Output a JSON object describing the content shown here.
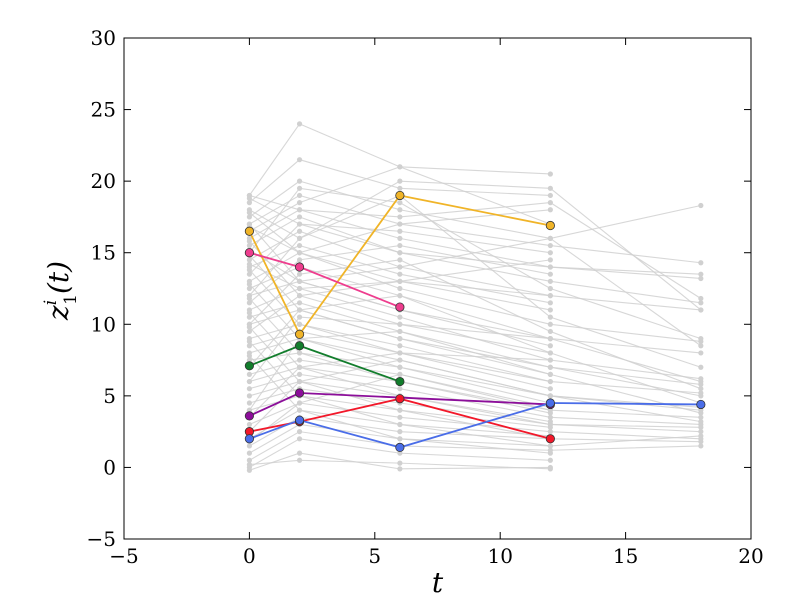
{
  "chart_data": {
    "type": "line",
    "title": "",
    "xlabel": "t",
    "ylabel_main": "z",
    "ylabel_sup": "i",
    "ylabel_sub": "1",
    "ylabel_arg": "(t)",
    "xlim": [
      -5,
      20
    ],
    "ylim": [
      -5,
      30
    ],
    "xticks": [
      -5,
      0,
      5,
      10,
      15,
      20
    ],
    "yticks": [
      -5,
      0,
      5,
      10,
      15,
      20,
      25,
      30
    ],
    "xtick_labels": [
      "−5",
      "0",
      "5",
      "10",
      "15",
      "20"
    ],
    "ytick_labels": [
      "−5",
      "0",
      "5",
      "10",
      "15",
      "20",
      "25",
      "30"
    ],
    "grid": false,
    "background_series_color": "#d0d0d0",
    "background_series": [
      {
        "x": [
          0,
          2,
          6,
          12
        ],
        "y": [
          19.0,
          24.0,
          21.0,
          20.5
        ]
      },
      {
        "x": [
          0,
          2,
          6,
          12
        ],
        "y": [
          18.5,
          21.5,
          19.5,
          19.0
        ]
      },
      {
        "x": [
          0,
          2,
          6,
          12,
          18
        ],
        "y": [
          17.5,
          20.0,
          18.0,
          16.0,
          18.3
        ]
      },
      {
        "x": [
          0,
          2,
          6,
          12,
          18
        ],
        "y": [
          17.0,
          19.0,
          17.0,
          15.5,
          14.3
        ]
      },
      {
        "x": [
          0,
          2,
          6,
          12,
          18
        ],
        "y": [
          16.0,
          18.0,
          16.0,
          14.0,
          13.5
        ]
      },
      {
        "x": [
          0,
          2,
          6,
          12,
          18
        ],
        "y": [
          15.5,
          17.5,
          15.0,
          13.0,
          11.5
        ]
      },
      {
        "x": [
          0,
          2,
          6,
          12,
          18
        ],
        "y": [
          14.5,
          16.5,
          14.0,
          12.0,
          11.0
        ]
      },
      {
        "x": [
          0,
          2,
          6,
          12
        ],
        "y": [
          14.0,
          15.5,
          13.5,
          11.5
        ]
      },
      {
        "x": [
          0,
          2,
          6,
          12,
          18
        ],
        "y": [
          13.0,
          15.0,
          12.5,
          10.0,
          8.8
        ]
      },
      {
        "x": [
          0,
          2,
          6,
          12,
          18
        ],
        "y": [
          12.5,
          14.0,
          12.0,
          9.0,
          8.0
        ]
      },
      {
        "x": [
          0,
          2,
          6,
          12
        ],
        "y": [
          12.0,
          13.0,
          11.0,
          8.5
        ]
      },
      {
        "x": [
          0,
          2,
          6,
          12,
          18
        ],
        "y": [
          11.0,
          12.5,
          10.5,
          7.5,
          6.2
        ]
      },
      {
        "x": [
          0,
          2,
          6,
          12,
          18
        ],
        "y": [
          10.5,
          11.5,
          9.5,
          7.0,
          5.8
        ]
      },
      {
        "x": [
          0,
          2,
          6,
          12
        ],
        "y": [
          10.0,
          11.0,
          9.0,
          6.5
        ]
      },
      {
        "x": [
          0,
          2,
          6,
          12,
          18
        ],
        "y": [
          9.0,
          10.0,
          8.5,
          6.0,
          5.2
        ]
      },
      {
        "x": [
          0,
          2,
          6,
          12
        ],
        "y": [
          8.5,
          9.5,
          8.0,
          5.5
        ]
      },
      {
        "x": [
          0,
          2,
          6,
          12,
          18
        ],
        "y": [
          8.0,
          9.0,
          7.5,
          5.0,
          4.0
        ]
      },
      {
        "x": [
          0,
          2,
          6,
          12
        ],
        "y": [
          7.5,
          8.0,
          7.0,
          4.5
        ]
      },
      {
        "x": [
          0,
          2,
          6,
          12,
          18
        ],
        "y": [
          6.5,
          7.5,
          6.5,
          4.0,
          3.5
        ]
      },
      {
        "x": [
          0,
          2,
          6,
          12
        ],
        "y": [
          6.0,
          7.0,
          6.0,
          3.8
        ]
      },
      {
        "x": [
          0,
          2,
          6,
          12,
          18
        ],
        "y": [
          5.5,
          6.5,
          5.5,
          3.5,
          3.0
        ]
      },
      {
        "x": [
          0,
          2,
          6,
          12
        ],
        "y": [
          5.0,
          6.0,
          5.0,
          3.2
        ]
      },
      {
        "x": [
          0,
          2,
          6,
          12,
          18
        ],
        "y": [
          4.5,
          5.5,
          4.5,
          3.0,
          2.5
        ]
      },
      {
        "x": [
          0,
          2,
          6,
          12
        ],
        "y": [
          4.0,
          5.0,
          4.0,
          2.8
        ]
      },
      {
        "x": [
          0,
          2,
          6,
          12,
          18
        ],
        "y": [
          3.0,
          4.5,
          3.5,
          2.5,
          2.0
        ]
      },
      {
        "x": [
          0,
          2,
          6,
          12
        ],
        "y": [
          2.0,
          4.0,
          3.0,
          2.2
        ]
      },
      {
        "x": [
          0,
          2,
          6,
          12,
          18
        ],
        "y": [
          1.5,
          3.5,
          2.5,
          2.0,
          1.8
        ]
      },
      {
        "x": [
          0,
          2,
          6,
          12
        ],
        "y": [
          1.0,
          3.0,
          2.0,
          1.5
        ]
      },
      {
        "x": [
          0,
          2,
          6,
          12,
          18
        ],
        "y": [
          0.5,
          2.5,
          1.5,
          1.2,
          1.5
        ]
      },
      {
        "x": [
          0,
          2,
          6,
          12
        ],
        "y": [
          0.0,
          2.0,
          1.0,
          0.5
        ]
      },
      {
        "x": [
          0,
          2,
          6,
          12
        ],
        "y": [
          -0.2,
          1.0,
          -0.1,
          0.0
        ]
      },
      {
        "x": [
          0,
          2,
          6,
          12
        ],
        "y": [
          0.2,
          0.5,
          0.3,
          -0.1
        ]
      },
      {
        "x": [
          0,
          2,
          6,
          12,
          18
        ],
        "y": [
          18.0,
          16.0,
          20.0,
          19.5,
          11.0
        ]
      },
      {
        "x": [
          0,
          2,
          6,
          12
        ],
        "y": [
          16.5,
          18.5,
          21.0,
          17.0
        ]
      },
      {
        "x": [
          0,
          2,
          6,
          12,
          18
        ],
        "y": [
          15.0,
          19.5,
          18.5,
          12.5,
          9.0
        ]
      },
      {
        "x": [
          0,
          2,
          6,
          12
        ],
        "y": [
          13.5,
          17.0,
          16.5,
          15.0
        ]
      },
      {
        "x": [
          0,
          2,
          6,
          12,
          18
        ],
        "y": [
          12.0,
          16.0,
          19.0,
          10.5,
          7.0
        ]
      },
      {
        "x": [
          0,
          2,
          6,
          12
        ],
        "y": [
          11.5,
          14.5,
          15.5,
          13.5
        ]
      },
      {
        "x": [
          0,
          2,
          6,
          12,
          18
        ],
        "y": [
          10.0,
          13.5,
          14.5,
          9.5,
          5.5
        ]
      },
      {
        "x": [
          0,
          2,
          6,
          12
        ],
        "y": [
          9.5,
          12.0,
          13.0,
          11.0
        ]
      },
      {
        "x": [
          0,
          2,
          6,
          12,
          18
        ],
        "y": [
          7.0,
          11.0,
          12.0,
          8.0,
          4.5
        ]
      },
      {
        "x": [
          0,
          2,
          6,
          12
        ],
        "y": [
          6.0,
          10.5,
          10.0,
          9.0
        ]
      },
      {
        "x": [
          0,
          2,
          6,
          12,
          18
        ],
        "y": [
          4.0,
          9.0,
          9.5,
          6.5,
          3.8
        ]
      },
      {
        "x": [
          0,
          2,
          6,
          12
        ],
        "y": [
          3.5,
          7.0,
          8.0,
          7.5
        ]
      },
      {
        "x": [
          0,
          2,
          6,
          12,
          18
        ],
        "y": [
          2.5,
          6.0,
          7.5,
          5.0,
          3.2
        ]
      },
      {
        "x": [
          0,
          2,
          6,
          12
        ],
        "y": [
          1.8,
          4.5,
          6.5,
          4.2
        ]
      },
      {
        "x": [
          0,
          2,
          6,
          12,
          18
        ],
        "y": [
          17.0,
          13.0,
          11.0,
          9.0,
          6.0
        ]
      },
      {
        "x": [
          0,
          2,
          6,
          12
        ],
        "y": [
          15.8,
          12.0,
          10.0,
          8.0
        ]
      },
      {
        "x": [
          0,
          2,
          6,
          12,
          18
        ],
        "y": [
          14.8,
          11.0,
          9.0,
          7.0,
          5.0
        ]
      },
      {
        "x": [
          0,
          2,
          6,
          12
        ],
        "y": [
          13.8,
          10.0,
          8.0,
          6.0
        ]
      },
      {
        "x": [
          0,
          2,
          6,
          12,
          18
        ],
        "y": [
          12.8,
          9.0,
          7.0,
          5.0,
          4.2
        ]
      },
      {
        "x": [
          0,
          2,
          6,
          12
        ],
        "y": [
          11.8,
          8.0,
          6.0,
          4.0
        ]
      },
      {
        "x": [
          0,
          2,
          6,
          12,
          18
        ],
        "y": [
          10.8,
          7.0,
          5.0,
          3.0,
          2.8
        ]
      },
      {
        "x": [
          0,
          2,
          6,
          12
        ],
        "y": [
          9.8,
          6.0,
          4.0,
          2.0
        ]
      },
      {
        "x": [
          0,
          2,
          6,
          12,
          18
        ],
        "y": [
          8.8,
          5.0,
          3.0,
          1.5,
          2.2
        ]
      },
      {
        "x": [
          0,
          2,
          6,
          12
        ],
        "y": [
          7.8,
          4.0,
          2.0,
          1.0
        ]
      },
      {
        "x": [
          0,
          2,
          6,
          12,
          18
        ],
        "y": [
          18.8,
          17.0,
          15.0,
          14.0,
          13.2
        ]
      },
      {
        "x": [
          0,
          2,
          6,
          12
        ],
        "y": [
          17.8,
          15.0,
          13.0,
          12.0
        ]
      },
      {
        "x": [
          0,
          2,
          6,
          12,
          18
        ],
        "y": [
          19.0,
          18.0,
          17.5,
          18.5,
          11.8
        ]
      },
      {
        "x": [
          0,
          2,
          6,
          12
        ],
        "y": [
          16.8,
          15.0,
          17.0,
          18.0
        ]
      },
      {
        "x": [
          0,
          2,
          6,
          12,
          18
        ],
        "y": [
          15.2,
          13.0,
          14.0,
          16.0,
          8.5
        ]
      },
      {
        "x": [
          0,
          2,
          6,
          12
        ],
        "y": [
          14.2,
          12.5,
          13.0,
          14.5
        ]
      }
    ],
    "series": [
      {
        "color": "#f0b428",
        "x": [
          0,
          2,
          6,
          12
        ],
        "y": [
          16.5,
          9.3,
          19.0,
          16.9
        ]
      },
      {
        "color": "#ee3d8e",
        "x": [
          0,
          2,
          6
        ],
        "y": [
          15.0,
          14.0,
          11.2
        ]
      },
      {
        "color": "#127d2c",
        "x": [
          0,
          2,
          6
        ],
        "y": [
          7.1,
          8.5,
          6.0
        ]
      },
      {
        "color": "#8c0e9a",
        "x": [
          0,
          2,
          12
        ],
        "y": [
          3.6,
          5.2,
          4.4
        ]
      },
      {
        "color": "#f2182a",
        "x": [
          0,
          2,
          6,
          12
        ],
        "y": [
          2.5,
          3.2,
          4.8,
          2.0
        ]
      },
      {
        "color": "#4a6de8",
        "x": [
          0,
          2,
          6,
          12,
          18
        ],
        "y": [
          2.0,
          3.3,
          1.4,
          4.5,
          4.4
        ]
      }
    ]
  }
}
